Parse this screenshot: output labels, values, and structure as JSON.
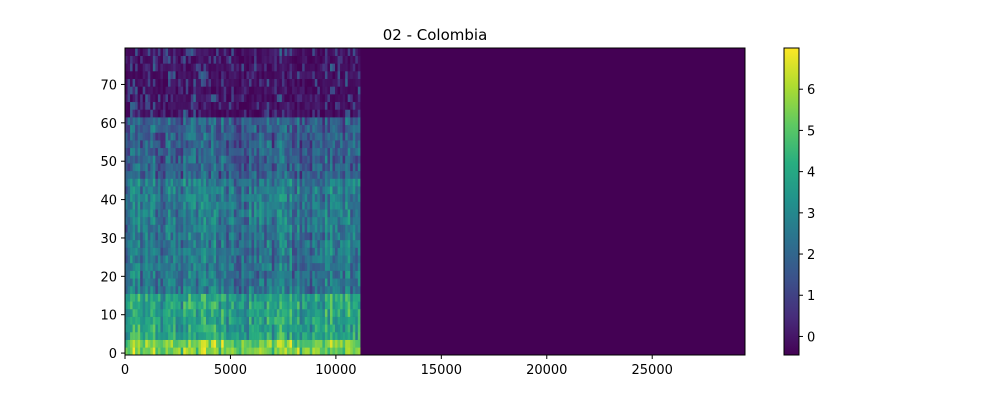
{
  "chart_data": {
    "type": "heatmap",
    "title": "02 - Colombia",
    "xlabel": "",
    "ylabel": "",
    "xlim": [
      0,
      29400
    ],
    "ylim": [
      -0.5,
      79.5
    ],
    "x_ticks": [
      0,
      5000,
      10000,
      15000,
      20000,
      25000
    ],
    "y_ticks": [
      0,
      10,
      20,
      30,
      40,
      50,
      60,
      70
    ],
    "colormap": "viridis",
    "colorbar": {
      "range": [
        -0.45,
        7.0
      ],
      "ticks": [
        0,
        1,
        2,
        3,
        4,
        5,
        6
      ]
    },
    "signal_end_x": 11150,
    "background_value": -0.45,
    "description_of_values": [
      {
        "rows": [
          0,
          3
        ],
        "typical": 5.2
      },
      {
        "rows": [
          4,
          14
        ],
        "typical": 3.6
      },
      {
        "rows": [
          15,
          33
        ],
        "typical": 2.2
      },
      {
        "rows": [
          34,
          44
        ],
        "typical": 2.4
      },
      {
        "rows": [
          45,
          60
        ],
        "typical": 1.6
      },
      {
        "rows": [
          61,
          79
        ],
        "typical": 0.4
      }
    ],
    "grid": false,
    "legend": "colorbar-right"
  }
}
